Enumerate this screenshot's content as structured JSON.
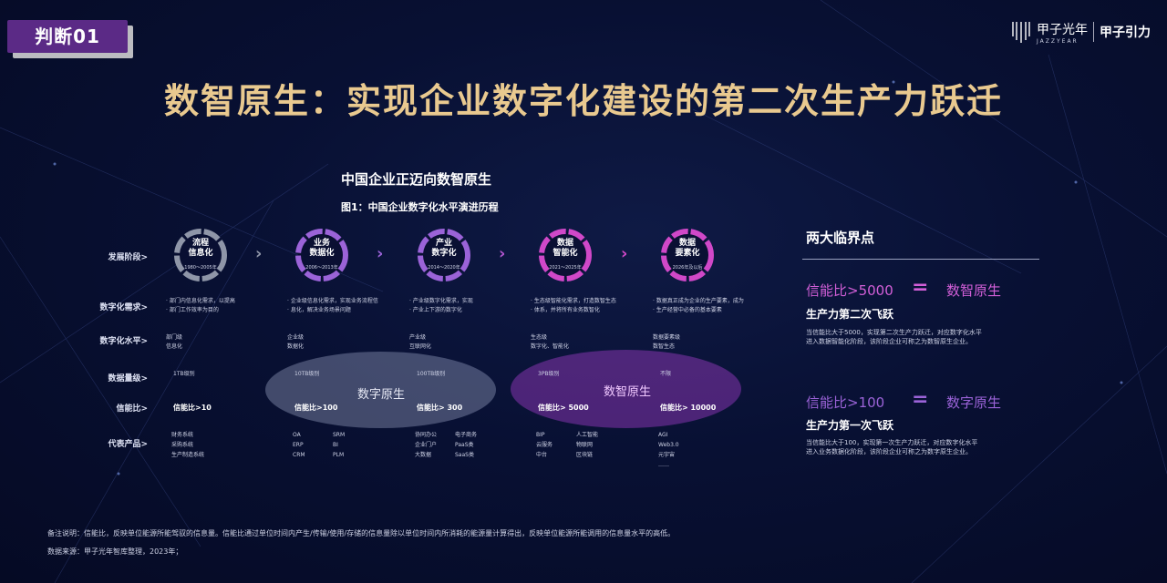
{
  "tag": "判断01",
  "logo": {
    "name_cn": "甲子光年",
    "name_en": "JAZZYEAR",
    "brand2": "甲子引力"
  },
  "title": "数智原生：实现企业数字化建设的第二次生产力跃迁",
  "chart_title": "中国企业正迈向数智原生",
  "figure_title": "图1：中国企业数字化水平演进历程",
  "row_labels": [
    "发展阶段>",
    "数字化需求>",
    "数字化水平>",
    "数据量级>",
    "信能比>",
    "代表产品>"
  ],
  "stages": [
    {
      "name_l1": "流程",
      "name_l2": "信息化",
      "years": "1980～2005年",
      "color": "#8f96a8",
      "need": [
        "部门内信息化需求，以提高",
        "部门工作效率为目的"
      ],
      "level": [
        "部门级",
        "信息化"
      ],
      "volume": "1TB级别",
      "ratio": "信能比>10",
      "products": [
        [
          "财务系统"
        ],
        [
          "采购系统"
        ],
        [
          "生产制造系统"
        ]
      ]
    },
    {
      "name_l1": "业务",
      "name_l2": "数据化",
      "years": "2006～2013年",
      "color": "#9b63d8",
      "need": [
        "企业级信息化需求，实现业务流程信",
        "息化，解决业务场景问题"
      ],
      "level": [
        "企业级",
        "数据化"
      ],
      "volume": "10TB级别",
      "ratio": "信能比>100",
      "products": [
        [
          "OA",
          "SRM"
        ],
        [
          "ERP",
          "BI"
        ],
        [
          "CRM",
          "PLM"
        ]
      ]
    },
    {
      "name_l1": "产业",
      "name_l2": "数字化",
      "years": "2014～2020年",
      "color": "#9b63d8",
      "need": [
        "产业级数字化需求，实现",
        "产业上下游的数字化"
      ],
      "level": [
        "产业级",
        "互联网化"
      ],
      "volume": "100TB级别",
      "ratio": "信能比> 300",
      "products": [
        [
          "协同办公",
          "电子商务"
        ],
        [
          "企业门户",
          "PaaS类"
        ],
        [
          "大数据",
          "SaaS类"
        ]
      ]
    },
    {
      "name_l1": "数据",
      "name_l2": "智能化",
      "years": "2021～2025年",
      "color": "#d048c8",
      "need": [
        "生态级智能化需求，打造数智生态",
        "体系，并将所有业务数智化"
      ],
      "level": [
        "生态级",
        "数字化、智能化"
      ],
      "volume": "3PB级别",
      "ratio": "信能比> 5000",
      "products": [
        [
          "BIP",
          "人工智能"
        ],
        [
          "云服务",
          "物联网"
        ],
        [
          "中台",
          "区块链"
        ]
      ]
    },
    {
      "name_l1": "数据",
      "name_l2": "要素化",
      "years": "2026年及以后",
      "color": "#d048c8",
      "need": [
        "数据真正成为企业的生产要素，成为",
        "生产经营中必备的基本要素"
      ],
      "level": [
        "数据要素级",
        "数智生态"
      ],
      "volume": "不限",
      "ratio": "信能比> 10000",
      "products": [
        [
          "AGI"
        ],
        [
          "Web3.0"
        ],
        [
          "元宇宙"
        ],
        [
          "……"
        ]
      ]
    }
  ],
  "ellipses": {
    "digital": "数字原生",
    "intelligent": "数智原生"
  },
  "side": {
    "title": "两大临界点",
    "points": [
      {
        "left": "信能比>5000",
        "eq": "=",
        "right": "数智原生",
        "sub": "生产力第二次飞跃",
        "desc": [
          "当信能比大于5000，实现第二次生产力跃迁，对应数字化水平",
          "进入数据智能化阶段，该阶段企业可称之为数智原生企业。"
        ]
      },
      {
        "left": "信能比>100",
        "eq": "=",
        "right": "数字原生",
        "sub": "生产力第一次飞跃",
        "desc": [
          "当信能比大于100，实现第一次生产力跃迁，对应数字化水平",
          "进入业务数据化阶段，该阶段企业可称之为数字原生企业。"
        ]
      }
    ]
  },
  "footnote": "备注说明：信能比，反映单位能源所能驾驭的信息量。信能比通过单位时间内产生/传输/使用/存储的信息量除以单位时间内所消耗的能源量计算得出，反映单位能源所能调用的信息量水平的高低。",
  "source": "数据来源：甲子光年智库整理，2023年；",
  "colors": {
    "accent": "#d35fd8",
    "gold": "#e9c98f",
    "purple": "#9b63d8"
  }
}
